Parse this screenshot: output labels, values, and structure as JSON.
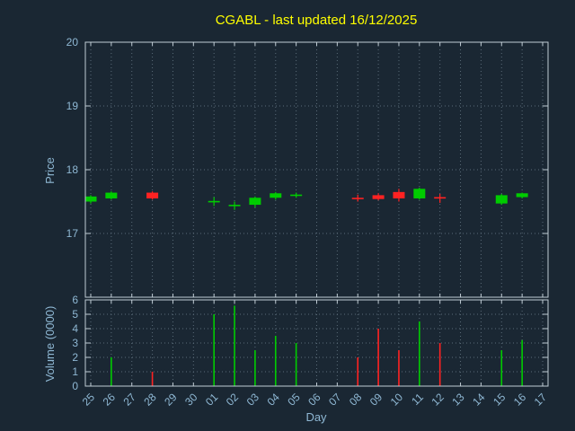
{
  "colors": {
    "background": "#1a2733",
    "title": "#ffff00",
    "tick_text": "#8fb8d4",
    "border": "#c0ccd4",
    "grid": "#5a6b78",
    "up": "#00cc00",
    "down": "#ff2222"
  },
  "chart_data": {
    "type": "candlestick",
    "title": "CGABL - last updated 16/12/2025",
    "xlabel": "Day",
    "price_ylabel": "Price",
    "volume_ylabel": "Volume (0000)",
    "price_ticks": [
      17,
      18,
      19,
      20
    ],
    "price_range": [
      16.0,
      20.0
    ],
    "volume_ticks": [
      0,
      1,
      2,
      3,
      4,
      5,
      6
    ],
    "volume_range": [
      0,
      6
    ],
    "grid": "dotted",
    "categories": [
      "25",
      "26",
      "27",
      "28",
      "29",
      "30",
      "01",
      "02",
      "03",
      "04",
      "05",
      "06",
      "07",
      "08",
      "09",
      "10",
      "11",
      "12",
      "13",
      "14",
      "15",
      "16",
      "17"
    ],
    "candles": [
      {
        "o": 17.5,
        "h": 17.6,
        "l": 17.47,
        "c": 17.58,
        "v": 0
      },
      {
        "o": 17.55,
        "h": 17.66,
        "l": 17.53,
        "c": 17.64,
        "v": 2.0
      },
      null,
      {
        "o": 17.64,
        "h": 17.66,
        "l": 17.53,
        "c": 17.55,
        "v": 1.0
      },
      null,
      null,
      {
        "o": 17.49,
        "h": 17.57,
        "l": 17.43,
        "c": 17.51,
        "v": 5.0
      },
      {
        "o": 17.43,
        "h": 17.5,
        "l": 17.37,
        "c": 17.45,
        "v": 5.6
      },
      {
        "o": 17.45,
        "h": 17.58,
        "l": 17.41,
        "c": 17.56,
        "v": 2.5
      },
      {
        "o": 17.56,
        "h": 17.65,
        "l": 17.53,
        "c": 17.63,
        "v": 3.5
      },
      {
        "o": 17.59,
        "h": 17.64,
        "l": 17.56,
        "c": 17.61,
        "v": 3.0
      },
      null,
      null,
      {
        "o": 17.56,
        "h": 17.61,
        "l": 17.5,
        "c": 17.54,
        "v": 2.0
      },
      {
        "o": 17.6,
        "h": 17.63,
        "l": 17.52,
        "c": 17.54,
        "v": 4.0
      },
      {
        "o": 17.65,
        "h": 17.7,
        "l": 17.5,
        "c": 17.55,
        "v": 2.5
      },
      {
        "o": 17.55,
        "h": 17.72,
        "l": 17.53,
        "c": 17.7,
        "v": 4.5
      },
      {
        "o": 17.57,
        "h": 17.62,
        "l": 17.48,
        "c": 17.55,
        "v": 3.0
      },
      null,
      null,
      {
        "o": 17.47,
        "h": 17.62,
        "l": 17.45,
        "c": 17.6,
        "v": 2.5
      },
      {
        "o": 17.57,
        "h": 17.64,
        "l": 17.55,
        "c": 17.63,
        "v": 3.2
      },
      null
    ]
  }
}
